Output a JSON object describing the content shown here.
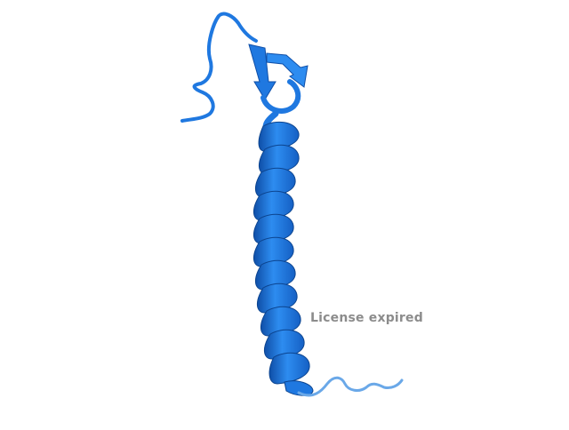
{
  "watermark": {
    "text": "License expired"
  },
  "colors": {
    "background": "#ffffff",
    "ribbon": "#1f78e0",
    "ribbon_dark": "#0f4fa8",
    "ribbon_light": "#4aa0f5",
    "tail": "#6aa8e8",
    "watermark": "#8c8c8c"
  }
}
